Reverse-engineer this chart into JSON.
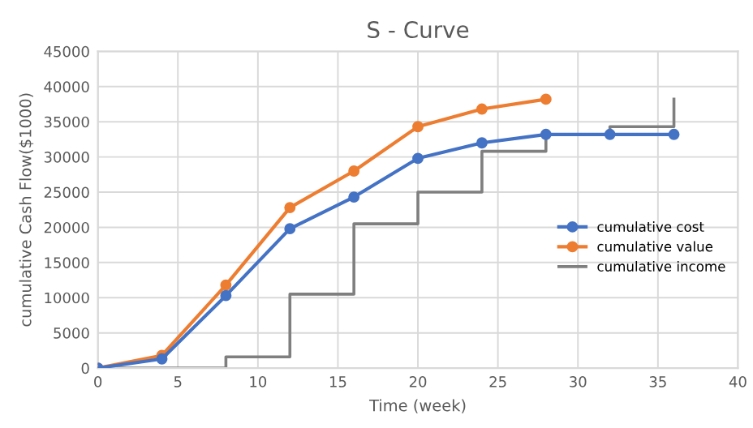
{
  "chart_data": {
    "type": "line",
    "title": "S - Curve",
    "xlabel": "Time (week)",
    "ylabel": "cumulative Cash Flow($1000)",
    "xlim": [
      0,
      40
    ],
    "xticks": [
      0,
      5,
      10,
      15,
      20,
      25,
      30,
      35,
      40
    ],
    "ylim": [
      0,
      45000
    ],
    "yticks": [
      0,
      5000,
      10000,
      15000,
      20000,
      25000,
      30000,
      35000,
      40000,
      45000
    ],
    "grid": true,
    "legend": "right",
    "series": [
      {
        "name": "cumulative cost",
        "color": "#4472c4",
        "marker": "circle",
        "x": [
          0,
          4,
          8,
          12,
          16,
          20,
          24,
          28,
          32,
          36
        ],
        "values": [
          0,
          1300,
          10300,
          19800,
          24300,
          29800,
          32000,
          33200,
          33200,
          33200
        ]
      },
      {
        "name": "cumulative value",
        "color": "#ed7d31",
        "marker": "circle",
        "x": [
          0,
          4,
          8,
          12,
          16,
          20,
          24,
          28
        ],
        "values": [
          0,
          1800,
          11800,
          22800,
          28000,
          34300,
          36800,
          38200
        ]
      },
      {
        "name": "cumulative income",
        "color": "#7f7f7f",
        "type": "step",
        "marker": "none",
        "x": [
          0,
          4,
          8,
          12,
          16,
          20,
          24,
          28,
          32,
          36
        ],
        "values": [
          0,
          0,
          1600,
          10500,
          20500,
          25000,
          30800,
          33200,
          34300,
          38200
        ]
      }
    ]
  }
}
